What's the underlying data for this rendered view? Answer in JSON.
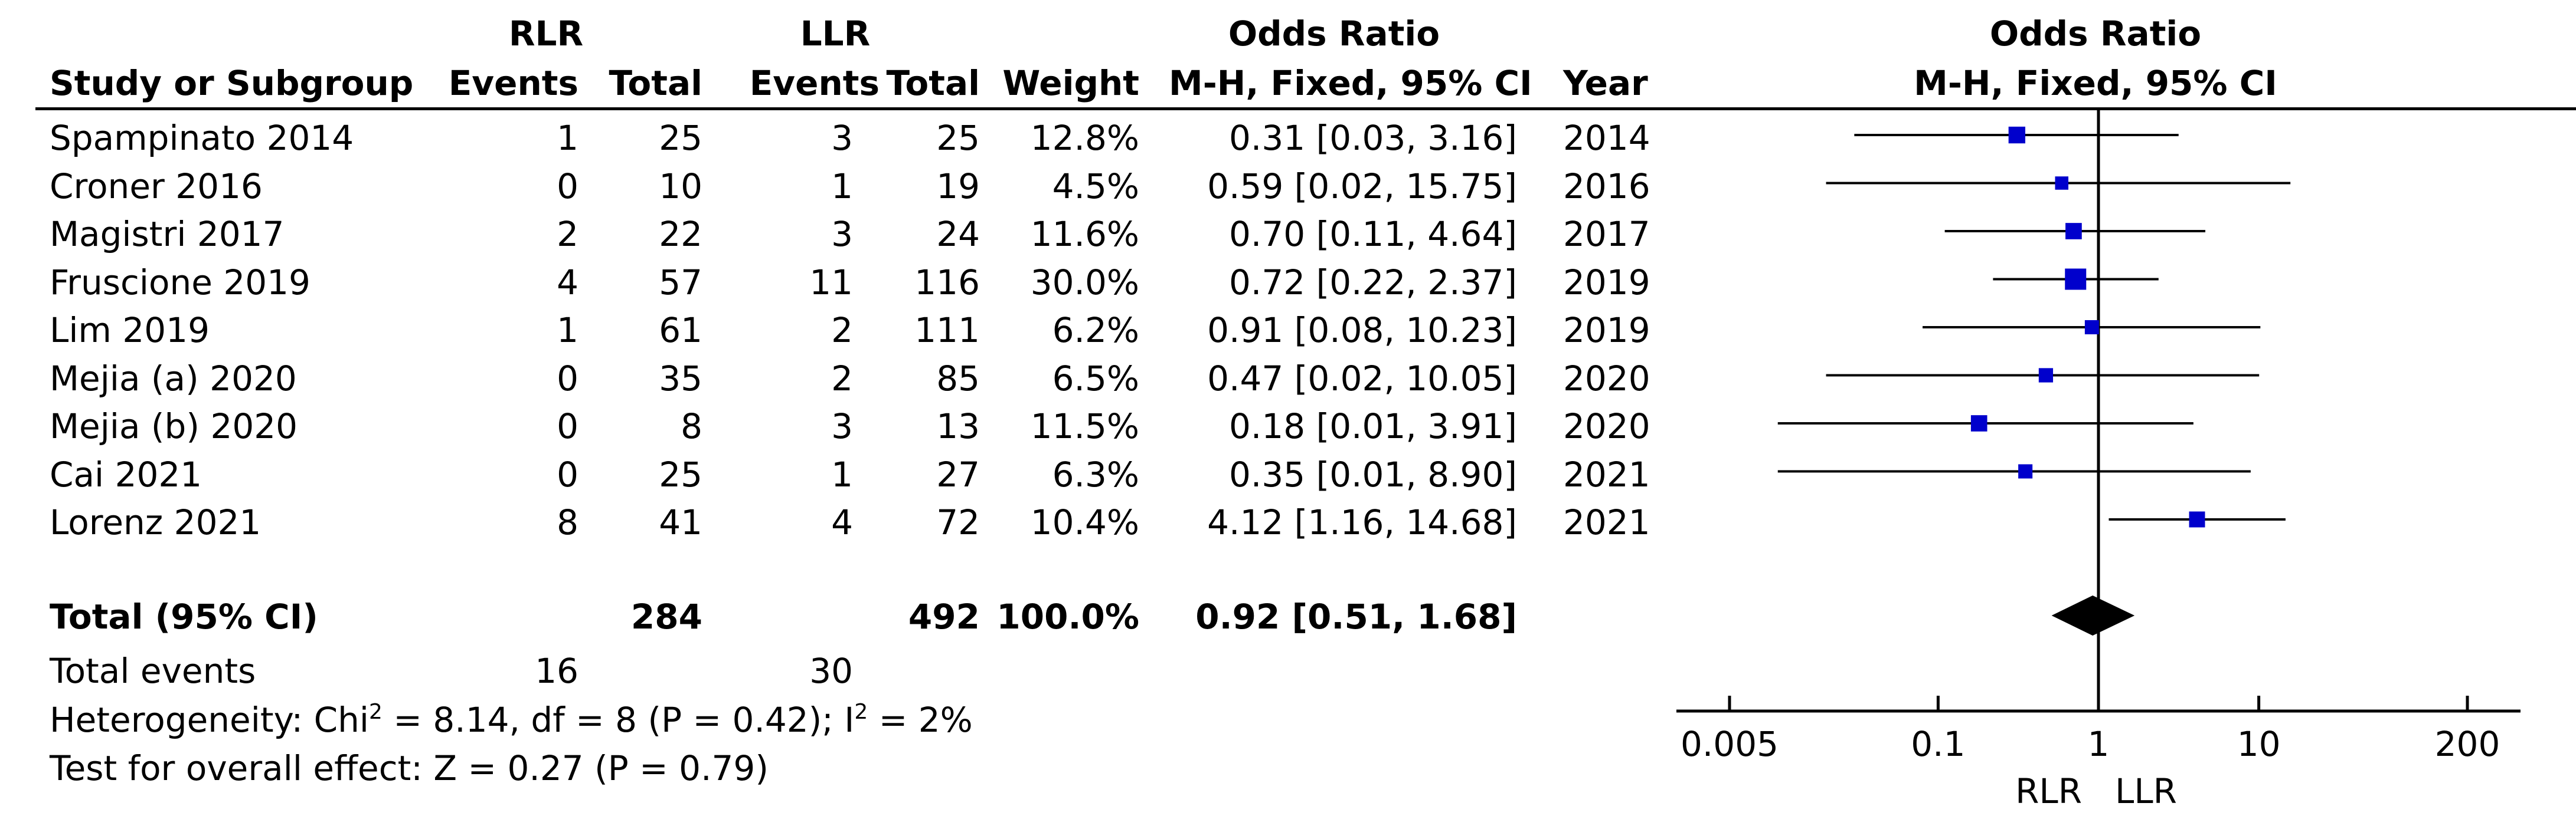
{
  "headers": {
    "rlr_group": "RLR",
    "llr_group": "LLR",
    "or_group": "Odds Ratio",
    "study": "Study or Subgroup",
    "rlr_events": "Events",
    "rlr_total": "Total",
    "llr_events": "Events",
    "llr_total": "Total",
    "weight": "Weight",
    "or_method": "M-H, Fixed, 95% CI",
    "year": "Year",
    "plot_title": "Odds Ratio",
    "plot_method": "M-H, Fixed, 95% CI"
  },
  "studies": [
    {
      "name": "Spampinato 2014",
      "rlr_events": "1",
      "rlr_total": "25",
      "llr_events": "3",
      "llr_total": "25",
      "weight": "12.8%",
      "ci_text": "0.31 [0.03, 3.16]",
      "year": "2014"
    },
    {
      "name": "Croner 2016",
      "rlr_events": "0",
      "rlr_total": "10",
      "llr_events": "1",
      "llr_total": "19",
      "weight": "4.5%",
      "ci_text": "0.59 [0.02, 15.75]",
      "year": "2016"
    },
    {
      "name": "Magistri 2017",
      "rlr_events": "2",
      "rlr_total": "22",
      "llr_events": "3",
      "llr_total": "24",
      "weight": "11.6%",
      "ci_text": "0.70 [0.11, 4.64]",
      "year": "2017"
    },
    {
      "name": "Fruscione 2019",
      "rlr_events": "4",
      "rlr_total": "57",
      "llr_events": "11",
      "llr_total": "116",
      "weight": "30.0%",
      "ci_text": "0.72 [0.22, 2.37]",
      "year": "2019"
    },
    {
      "name": "Lim 2019",
      "rlr_events": "1",
      "rlr_total": "61",
      "llr_events": "2",
      "llr_total": "111",
      "weight": "6.2%",
      "ci_text": "0.91 [0.08, 10.23]",
      "year": "2019"
    },
    {
      "name": "Mejia (a) 2020",
      "rlr_events": "0",
      "rlr_total": "35",
      "llr_events": "2",
      "llr_total": "85",
      "weight": "6.5%",
      "ci_text": "0.47 [0.02, 10.05]",
      "year": "2020"
    },
    {
      "name": "Mejia (b) 2020",
      "rlr_events": "0",
      "rlr_total": "8",
      "llr_events": "3",
      "llr_total": "13",
      "weight": "11.5%",
      "ci_text": "0.18 [0.01, 3.91]",
      "year": "2020"
    },
    {
      "name": "Cai 2021",
      "rlr_events": "0",
      "rlr_total": "25",
      "llr_events": "1",
      "llr_total": "27",
      "weight": "6.3%",
      "ci_text": "0.35 [0.01, 8.90]",
      "year": "2021"
    },
    {
      "name": "Lorenz 2021",
      "rlr_events": "8",
      "rlr_total": "41",
      "llr_events": "4",
      "llr_total": "72",
      "weight": "10.4%",
      "ci_text": "4.12 [1.16, 14.68]",
      "year": "2021"
    }
  ],
  "total": {
    "label": "Total (95% CI)",
    "rlr_total": "284",
    "llr_total": "492",
    "weight": "100.0%",
    "ci_text": "0.92 [0.51, 1.68]"
  },
  "total_events": {
    "label": "Total events",
    "rlr": "16",
    "llr": "30"
  },
  "heterogeneity": {
    "prefix": "Heterogeneity: Chi",
    "mid": " = 8.14, df = 8 (P = 0.42); I",
    "suffix": " = 2%",
    "sup": "2"
  },
  "overall_effect": "Test for overall effect: Z = 0.27 (P = 0.79)",
  "axis": {
    "ticks": [
      "0.005",
      "0.1",
      "1",
      "10",
      "200"
    ],
    "favours_left": "RLR",
    "favours_right": "LLR"
  },
  "chart_data": {
    "type": "forest",
    "scale": "log",
    "xlim": [
      0.005,
      200
    ],
    "x_ticks": [
      0.005,
      0.1,
      1,
      10,
      200
    ],
    "null_line": 1,
    "marker_color": "#0000cc",
    "studies": [
      {
        "name": "Spampinato 2014",
        "or": 0.31,
        "lo": 0.03,
        "hi": 3.16,
        "weight": 12.8
      },
      {
        "name": "Croner 2016",
        "or": 0.59,
        "lo": 0.02,
        "hi": 15.75,
        "weight": 4.5
      },
      {
        "name": "Magistri 2017",
        "or": 0.7,
        "lo": 0.11,
        "hi": 4.64,
        "weight": 11.6
      },
      {
        "name": "Fruscione 2019",
        "or": 0.72,
        "lo": 0.22,
        "hi": 2.37,
        "weight": 30.0
      },
      {
        "name": "Lim 2019",
        "or": 0.91,
        "lo": 0.08,
        "hi": 10.23,
        "weight": 6.2
      },
      {
        "name": "Mejia (a) 2020",
        "or": 0.47,
        "lo": 0.02,
        "hi": 10.05,
        "weight": 6.5
      },
      {
        "name": "Mejia (b) 2020",
        "or": 0.18,
        "lo": 0.01,
        "hi": 3.91,
        "weight": 11.5
      },
      {
        "name": "Cai 2021",
        "or": 0.35,
        "lo": 0.01,
        "hi": 8.9,
        "weight": 6.3
      },
      {
        "name": "Lorenz 2021",
        "or": 4.12,
        "lo": 1.16,
        "hi": 14.68,
        "weight": 10.4
      }
    ],
    "pooled": {
      "or": 0.92,
      "lo": 0.51,
      "hi": 1.68
    }
  }
}
